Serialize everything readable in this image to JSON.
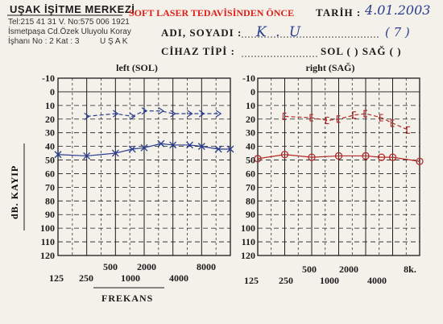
{
  "header": {
    "clinic_name": "UŞAK İŞİTME MERKEZİ",
    "phone": "Tel:215 41 31 V. No:575 006 1921",
    "address_line1": "İsmetpaşa Cd.Özek Uluyolu Koray",
    "address_line2": "İşhanı No : 2 Kat : 3",
    "city": "U Ş A K",
    "red_title": "SOFT LASER TEDAVİSİNDEN ÖNCE",
    "date_label": "TARİH :",
    "date_value": "4.01.2003",
    "name_label": "ADI, SOYADI :",
    "name_value": "K . U",
    "name_extra": "( 7 )",
    "device_label": "CİHAZ TİPİ   :",
    "side_label": "SOL  (   )   SAĞ  (   )"
  },
  "y_axis_label": "dB.  KAYIP",
  "x_axis_label": "FREKANS",
  "colors": {
    "ink": "#1c1c1c",
    "left_ear": "#2a3d8f",
    "right_ear": "#b42a2a",
    "paper": "#f3f1ea"
  },
  "chart_data": [
    {
      "type": "line",
      "title": "left (SOL)",
      "y_ticks": [
        "-10",
        "0",
        "10",
        "20",
        "30",
        "40",
        "50",
        "60",
        "70",
        "80",
        "90",
        "100",
        "110",
        "120"
      ],
      "x_ticks_top": [
        "500",
        "2000",
        "8000"
      ],
      "x_ticks_bottom": [
        "125",
        "250",
        "1000",
        "4000"
      ],
      "ylim": [
        -10,
        120
      ],
      "x_unit": "Hz",
      "y_unit": "dB",
      "grid": true,
      "series": [
        {
          "marker": "arrow",
          "line": "dashed",
          "x": [
            250,
            500,
            750,
            1000,
            1500,
            2000,
            3000,
            4000,
            6000
          ],
          "y": [
            18,
            16,
            18,
            14,
            14,
            16,
            16,
            16,
            16
          ]
        },
        {
          "marker": "x",
          "line": "solid",
          "x": [
            125,
            250,
            500,
            750,
            1000,
            1500,
            2000,
            3000,
            4000,
            6000,
            8000
          ],
          "y": [
            46,
            47,
            45,
            42,
            41,
            38,
            39,
            39,
            40,
            42,
            42
          ]
        }
      ]
    },
    {
      "type": "line",
      "title": "right (SAĞ)",
      "y_ticks": [
        "-10",
        "0",
        "10",
        "20",
        "30",
        "40",
        "50",
        "60",
        "70",
        "80",
        "90",
        "100",
        "110",
        "120"
      ],
      "x_ticks_top": [
        "500",
        "2000",
        "8k."
      ],
      "x_ticks_bottom": [
        "125",
        "250",
        "1000",
        "4000"
      ],
      "ylim": [
        -10,
        120
      ],
      "x_unit": "Hz",
      "y_unit": "dB",
      "grid": true,
      "series": [
        {
          "marker": "bracket",
          "line": "dashed",
          "x": [
            250,
            500,
            750,
            1000,
            1500,
            2000,
            3000,
            4000,
            6000
          ],
          "y": [
            18,
            19,
            21,
            20,
            17,
            16,
            19,
            23,
            28
          ]
        },
        {
          "marker": "o",
          "line": "solid",
          "x": [
            125,
            250,
            500,
            1000,
            2000,
            3000,
            4000,
            8000
          ],
          "y": [
            49,
            46,
            48,
            47,
            47,
            48,
            48,
            51
          ]
        }
      ]
    }
  ]
}
